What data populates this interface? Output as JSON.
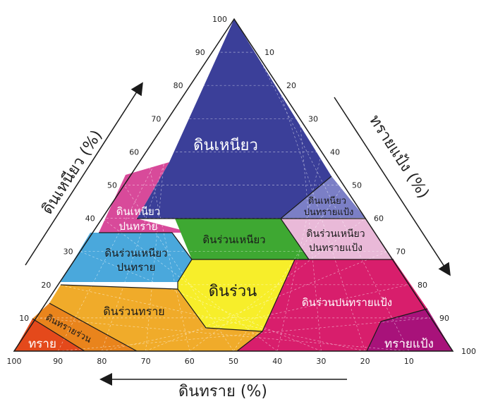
{
  "diagram": {
    "regions": [
      {
        "id": "clay",
        "label": "ดินเหนียว",
        "color": "#3b3f99"
      },
      {
        "id": "sandy-clay",
        "label_line1": "ดินเหนียว",
        "label_line2": "ปนทราย",
        "color": "#d84a9a"
      },
      {
        "id": "silty-clay",
        "label_line1": "ดินเหนียว",
        "label_line2": "ปนทรายแป้ง",
        "color": "#7b7fc6"
      },
      {
        "id": "clay-loam",
        "label": "ดินร่วนเหนียว",
        "color": "#3ea832"
      },
      {
        "id": "sandy-clay-loam",
        "label_line1": "ดินร่วนเหนียว",
        "label_line2": "ปนทราย",
        "color": "#4aa8dc"
      },
      {
        "id": "silty-clay-loam",
        "label_line1": "ดินร่วนเหนียว",
        "label_line2": "ปนทรายแป้ง",
        "color": "#e9b9d8"
      },
      {
        "id": "loam",
        "label": "ดินร่วน",
        "color": "#f7ee2a"
      },
      {
        "id": "silt-loam",
        "label": "ดินร่วนปนทรายแป้ง",
        "color": "#d81e6c"
      },
      {
        "id": "sandy-loam",
        "label": "ดินร่วนทราย",
        "color": "#f0ab2a"
      },
      {
        "id": "loamy-sand",
        "label": "ดินทรายร่วน",
        "color": "#e9841c"
      },
      {
        "id": "sand",
        "label": "ทราย",
        "color": "#e4491b"
      },
      {
        "id": "silt",
        "label": "ทรายแป้ง",
        "color": "#a8127a"
      }
    ],
    "axes": {
      "clay_title": "ดินเหนียว (%)",
      "silt_title": "ทรายแป้ง (%)",
      "sand_title": "ดินทราย (%)"
    },
    "ticks": {
      "left": [
        "10",
        "20",
        "30",
        "40",
        "50",
        "60",
        "70",
        "80",
        "90",
        "100"
      ],
      "right": [
        "10",
        "20",
        "30",
        "40",
        "50",
        "60",
        "70",
        "80",
        "90",
        "100"
      ],
      "bottom": [
        "100",
        "90",
        "80",
        "70",
        "60",
        "50",
        "40",
        "30",
        "20",
        "10"
      ]
    }
  }
}
